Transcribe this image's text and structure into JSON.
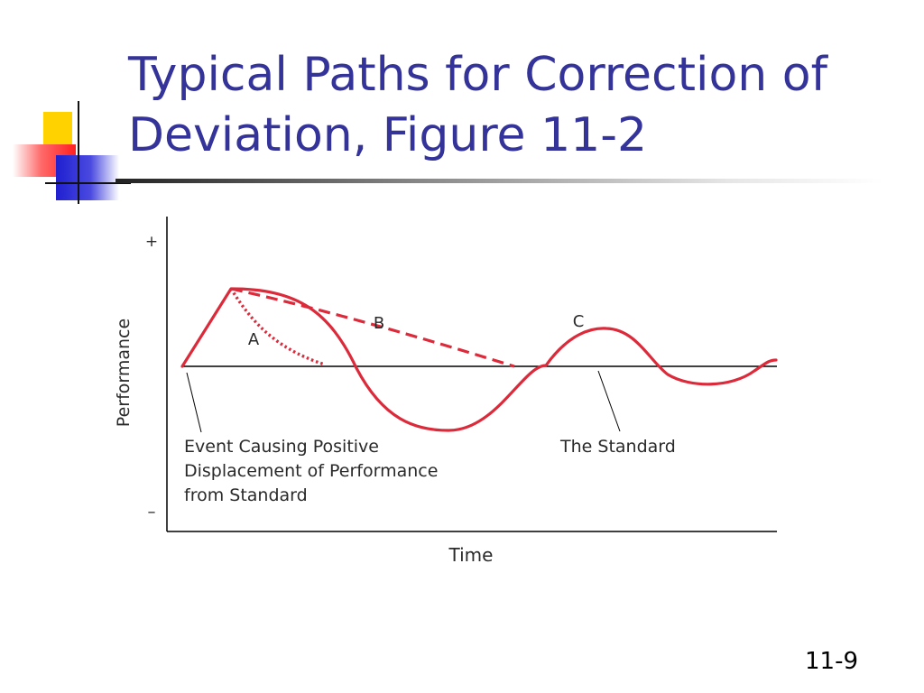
{
  "slide": {
    "title_line1": "Typical Paths for Correction of",
    "title_line2": "Deviation, Figure 11-2",
    "page_number": "11-9"
  },
  "figure": {
    "y_axis_label": "Performance",
    "y_axis_plus": "+",
    "y_axis_minus": "–",
    "x_axis_label": "Time",
    "path_a_label": "A",
    "path_b_label": "B",
    "path_c_label": "C",
    "event_note": [
      "Event Causing Positive",
      "Displacement of Performance",
      "from Standard"
    ],
    "standard_note": "The Standard",
    "colors": {
      "curve": "#dc2a3a",
      "axis": "#000000",
      "title": "#33339a"
    }
  }
}
